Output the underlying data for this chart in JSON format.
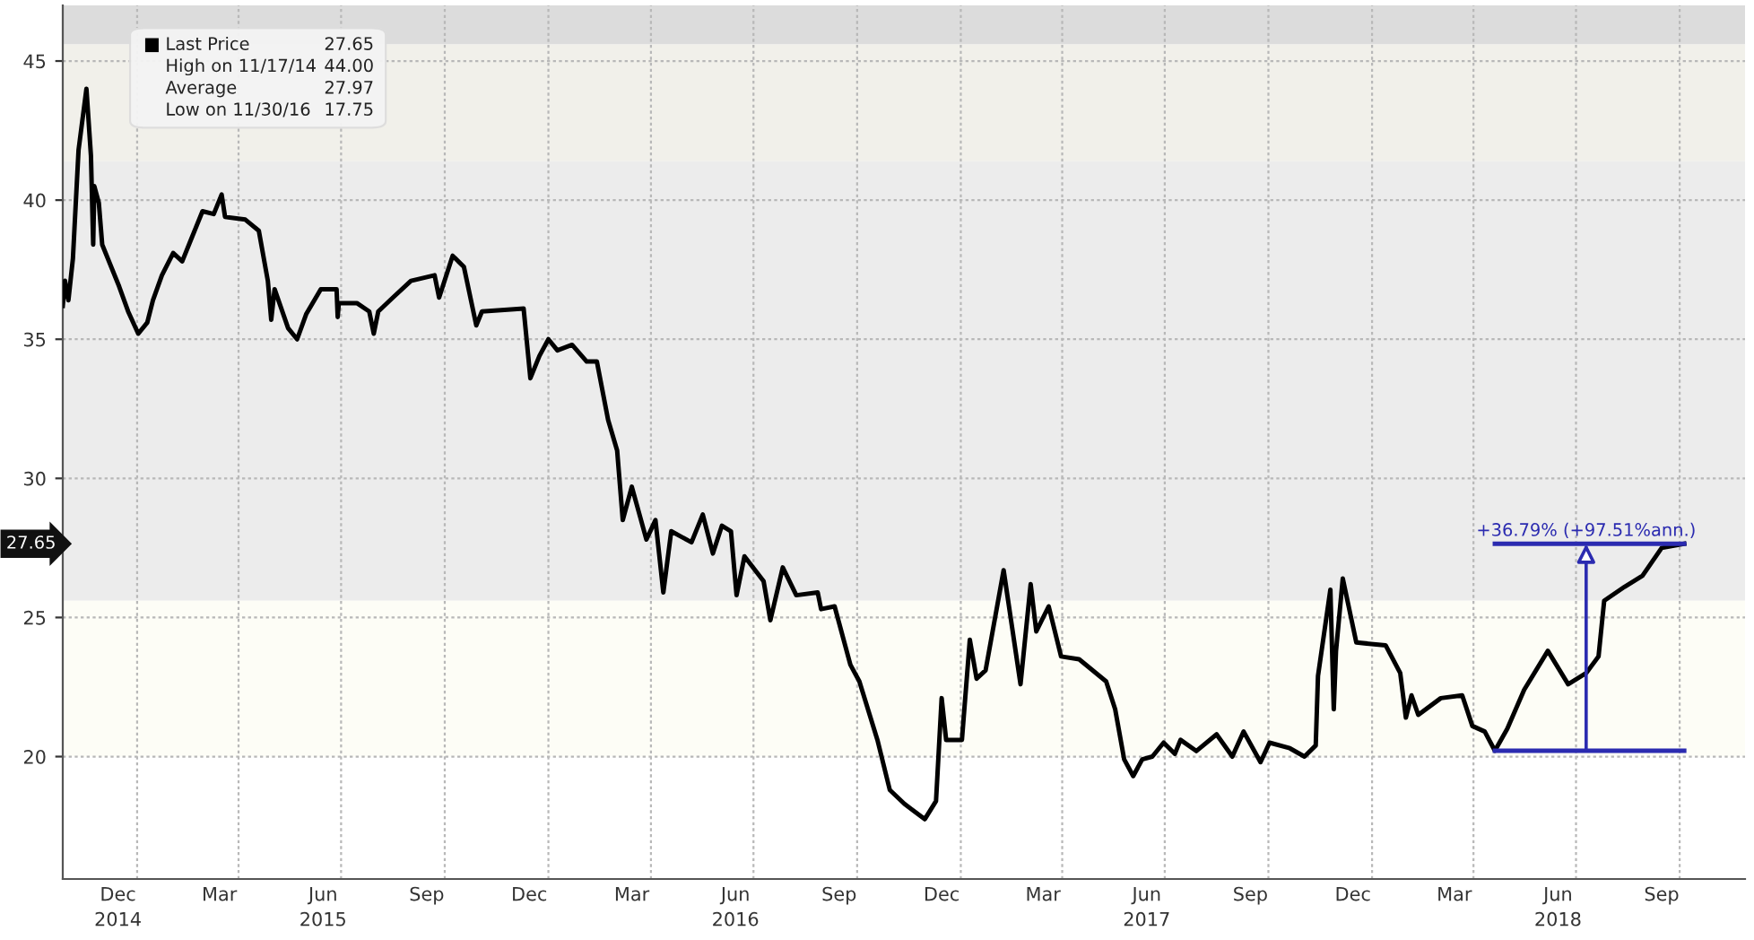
{
  "chart_data": {
    "type": "line",
    "x": [
      "2014-10-27",
      "2014-10-29",
      "2014-11-01",
      "2014-11-05",
      "2014-11-10",
      "2014-11-17",
      "2014-11-21",
      "2014-11-23",
      "2014-11-24",
      "2014-11-28",
      "2014-12-01",
      "2014-12-08",
      "2014-12-16",
      "2014-12-24",
      "2015-01-02",
      "2015-01-10",
      "2015-01-15",
      "2015-01-23",
      "2015-02-02",
      "2015-02-10",
      "2015-02-18",
      "2015-02-28",
      "2015-03-10",
      "2015-03-17",
      "2015-03-20",
      "2015-04-07",
      "2015-04-19",
      "2015-04-27",
      "2015-04-30",
      "2015-05-03",
      "2015-05-15",
      "2015-05-23",
      "2015-05-31",
      "2015-06-13",
      "2015-06-27",
      "2015-06-28",
      "2015-06-29",
      "2015-07-15",
      "2015-07-26",
      "2015-07-30",
      "2015-08-03",
      "2015-08-16",
      "2015-09-01",
      "2015-09-22",
      "2015-09-26",
      "2015-10-08",
      "2015-10-18",
      "2015-10-29",
      "2015-11-03",
      "2015-12-10",
      "2015-12-16",
      "2015-12-24",
      "2016-01-01",
      "2016-01-09",
      "2016-01-22",
      "2016-02-04",
      "2016-02-13",
      "2016-02-23",
      "2016-03-02",
      "2016-03-07",
      "2016-03-15",
      "2016-03-28",
      "2016-04-05",
      "2016-04-12",
      "2016-04-19",
      "2016-05-07",
      "2016-05-17",
      "2016-05-26",
      "2016-06-03",
      "2016-06-11",
      "2016-06-16",
      "2016-06-23",
      "2016-07-10",
      "2016-07-16",
      "2016-07-27",
      "2016-08-08",
      "2016-08-27",
      "2016-08-30",
      "2016-09-11",
      "2016-09-25",
      "2016-10-03",
      "2016-10-19",
      "2016-10-30",
      "2016-11-12",
      "2016-11-30",
      "2016-12-10",
      "2016-12-15",
      "2016-12-19",
      "2017-01-02",
      "2017-01-09",
      "2017-01-15",
      "2017-01-23",
      "2017-02-08",
      "2017-02-23",
      "2017-03-04",
      "2017-03-09",
      "2017-03-20",
      "2017-03-31",
      "2017-04-16",
      "2017-05-10",
      "2017-05-18",
      "2017-05-26",
      "2017-06-03",
      "2017-06-11",
      "2017-06-20",
      "2017-06-30",
      "2017-07-10",
      "2017-07-15",
      "2017-07-29",
      "2017-08-16",
      "2017-08-30",
      "2017-09-09",
      "2017-09-24",
      "2017-10-02",
      "2017-10-20",
      "2017-11-02",
      "2017-11-12",
      "2017-11-14",
      "2017-11-25",
      "2017-11-28",
      "2017-11-30",
      "2017-12-06",
      "2017-12-18",
      "2018-01-13",
      "2018-01-26",
      "2018-01-31",
      "2018-02-05",
      "2018-02-11",
      "2018-03-03",
      "2018-03-22",
      "2018-03-31",
      "2018-04-11",
      "2018-04-20",
      "2018-05-01",
      "2018-05-16",
      "2018-06-06",
      "2018-06-24",
      "2018-07-10",
      "2018-07-21",
      "2018-07-26",
      "2018-08-13",
      "2018-08-29",
      "2018-09-15",
      "2018-10-05"
    ],
    "series": [
      {
        "name": "Last Price",
        "color": "#000000",
        "values": [
          36.2,
          37.1,
          36.4,
          37.9,
          41.8,
          44.0,
          41.6,
          38.4,
          40.5,
          39.9,
          38.4,
          37.7,
          36.9,
          36.0,
          35.2,
          35.6,
          36.4,
          37.3,
          38.1,
          37.8,
          38.6,
          39.6,
          39.5,
          40.2,
          39.4,
          39.3,
          38.9,
          37.1,
          35.7,
          36.8,
          35.4,
          35.0,
          35.9,
          36.8,
          36.8,
          35.8,
          36.3,
          36.3,
          36.0,
          35.2,
          36.0,
          36.5,
          37.1,
          37.3,
          36.5,
          38.0,
          37.6,
          35.5,
          36.0,
          36.1,
          33.6,
          34.4,
          35.0,
          34.6,
          34.8,
          34.2,
          34.2,
          32.1,
          31.0,
          28.5,
          29.7,
          27.8,
          28.5,
          25.9,
          28.1,
          27.7,
          28.7,
          27.3,
          28.3,
          28.1,
          25.8,
          27.2,
          26.3,
          24.9,
          26.8,
          25.8,
          25.9,
          25.3,
          25.4,
          23.3,
          22.7,
          20.6,
          18.8,
          18.3,
          17.75,
          18.4,
          22.1,
          20.6,
          20.6,
          24.2,
          22.8,
          23.1,
          26.7,
          22.6,
          26.2,
          24.5,
          25.4,
          23.6,
          23.5,
          22.7,
          21.7,
          19.9,
          19.3,
          19.9,
          20.0,
          20.5,
          20.1,
          20.6,
          20.2,
          20.8,
          20.0,
          20.9,
          19.8,
          20.5,
          20.3,
          20.0,
          20.4,
          22.9,
          26.0,
          21.7,
          23.8,
          26.4,
          24.1,
          24.0,
          23.0,
          21.4,
          22.2,
          21.5,
          22.1,
          22.2,
          21.1,
          20.9,
          20.21,
          21.0,
          22.4,
          23.8,
          22.6,
          23.0,
          23.6,
          25.6,
          26.1,
          26.5,
          27.5,
          27.65
        ]
      },
      {
        "type": "line",
        "color": "#2b2bb0",
        "x": [
          "2018-04-20",
          "2018-10-05"
        ],
        "values": [
          20.21,
          20.21
        ]
      },
      {
        "type": "line",
        "color": "#2b2bb0",
        "x": [
          "2018-04-20",
          "2018-10-05"
        ],
        "values": [
          27.65,
          27.65
        ]
      }
    ],
    "xlim": [
      "2014-10-27",
      "2018-11-28"
    ],
    "xticks": [
      {
        "value": "2014-12-15",
        "label": "Dec\n2014"
      },
      {
        "value": "2015-01-01",
        "label": null
      },
      {
        "value": "2015-03-15",
        "label": "Mar"
      },
      {
        "value": "2015-04-01",
        "label": null
      },
      {
        "value": "2015-06-15",
        "label": "Jun\n2015"
      },
      {
        "value": "2015-07-01",
        "label": null
      },
      {
        "value": "2015-09-15",
        "label": "Sep"
      },
      {
        "value": "2015-10-01",
        "label": null
      },
      {
        "value": "2015-12-15",
        "label": "Dec"
      },
      {
        "value": "2016-01-01",
        "label": null
      },
      {
        "value": "2016-03-15",
        "label": "Mar"
      },
      {
        "value": "2016-04-01",
        "label": null
      },
      {
        "value": "2016-06-15",
        "label": "Jun\n2016"
      },
      {
        "value": "2016-07-01",
        "label": null
      },
      {
        "value": "2016-09-15",
        "label": "Sep"
      },
      {
        "value": "2016-10-01",
        "label": null
      },
      {
        "value": "2016-12-15",
        "label": "Dec"
      },
      {
        "value": "2017-01-01",
        "label": null
      },
      {
        "value": "2017-03-15",
        "label": "Mar"
      },
      {
        "value": "2017-04-01",
        "label": null
      },
      {
        "value": "2017-06-15",
        "label": "Jun\n2017"
      },
      {
        "value": "2017-07-01",
        "label": null
      },
      {
        "value": "2017-09-15",
        "label": "Sep"
      },
      {
        "value": "2017-10-01",
        "label": null
      },
      {
        "value": "2017-12-15",
        "label": "Dec"
      },
      {
        "value": "2018-01-01",
        "label": null
      },
      {
        "value": "2018-03-15",
        "label": "Mar"
      },
      {
        "value": "2018-04-01",
        "label": null
      },
      {
        "value": "2018-06-15",
        "label": "Jun\n2018"
      },
      {
        "value": "2018-07-01",
        "label": null
      },
      {
        "value": "2018-09-15",
        "label": "Sep"
      },
      {
        "value": "2018-10-01",
        "label": null
      }
    ],
    "ylim": [
      15.6,
      47
    ],
    "yticks": [
      20,
      25,
      30,
      35,
      40,
      45
    ],
    "grid": true,
    "legend": "top left",
    "bands": [
      {
        "axis": "y",
        "from": 45.6,
        "to": 47,
        "color": "#dcdcdc"
      },
      {
        "axis": "y",
        "from": 41.4,
        "to": 45.6,
        "color": "#f1f0ea"
      },
      {
        "axis": "y",
        "from": 25.6,
        "to": 41.4,
        "color": "#ececec"
      },
      {
        "axis": "y",
        "from": 20,
        "to": 25.6,
        "color": "#fdfdf6"
      }
    ],
    "annotations": [
      "27.65",
      {
        "text": "+36.79% (+97.51%ann.)",
        "x": "2018-07-10",
        "y": 27.65
      },
      "27.65",
      "High on 11/17/14",
      "44.00",
      "Average",
      "27.97",
      "Low on 11/30/16",
      "17.75"
    ]
  }
}
